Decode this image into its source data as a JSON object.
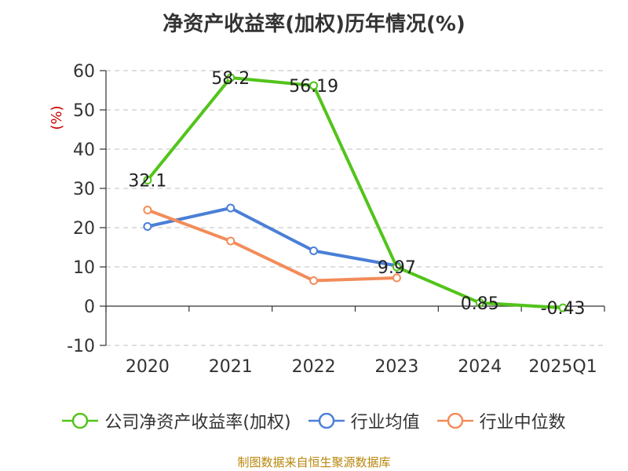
{
  "chart_data": {
    "type": "line",
    "title": "净资产收益率(加权)历年情况(%)",
    "ylabel": "(%)",
    "categories": [
      "2020",
      "2021",
      "2022",
      "2023",
      "2024",
      "2025Q1"
    ],
    "ylim": [
      -10,
      60
    ],
    "yticks": [
      -10,
      0,
      10,
      20,
      30,
      40,
      50,
      60
    ],
    "grid": true,
    "legend_position": "bottom",
    "series": [
      {
        "name": "公司净资产收益率(加权)",
        "color": "#52c41a",
        "values": [
          32.1,
          58.2,
          56.19,
          9.97,
          0.85,
          -0.43
        ],
        "labels": [
          "32.1",
          "58.2",
          "56.19",
          "9.97",
          "0.85",
          "-0.43"
        ]
      },
      {
        "name": "行业均值",
        "color": "#4a7fd6",
        "values": [
          20.3,
          25.0,
          14.1,
          10.3,
          null,
          null
        ]
      },
      {
        "name": "行业中位数",
        "color": "#f28c5a",
        "values": [
          24.5,
          16.6,
          6.5,
          7.2,
          null,
          null
        ]
      }
    ]
  },
  "source": "制图数据来自恒生聚源数据库"
}
